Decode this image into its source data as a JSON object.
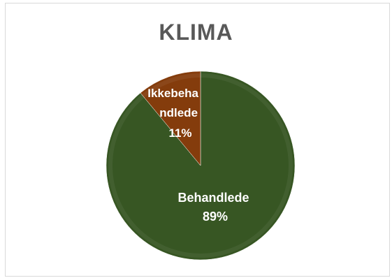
{
  "chart_data": {
    "type": "pie",
    "title": "KLIMA",
    "slices": [
      {
        "label_lines": [
          "Behandlede"
        ],
        "percent_label": "89%",
        "value": 89,
        "color": "#375623"
      },
      {
        "label_lines": [
          "Ikkebeha",
          "ndlede"
        ],
        "percent_label": "11%",
        "value": 11,
        "color": "#843c0c"
      }
    ],
    "legend": "none"
  }
}
